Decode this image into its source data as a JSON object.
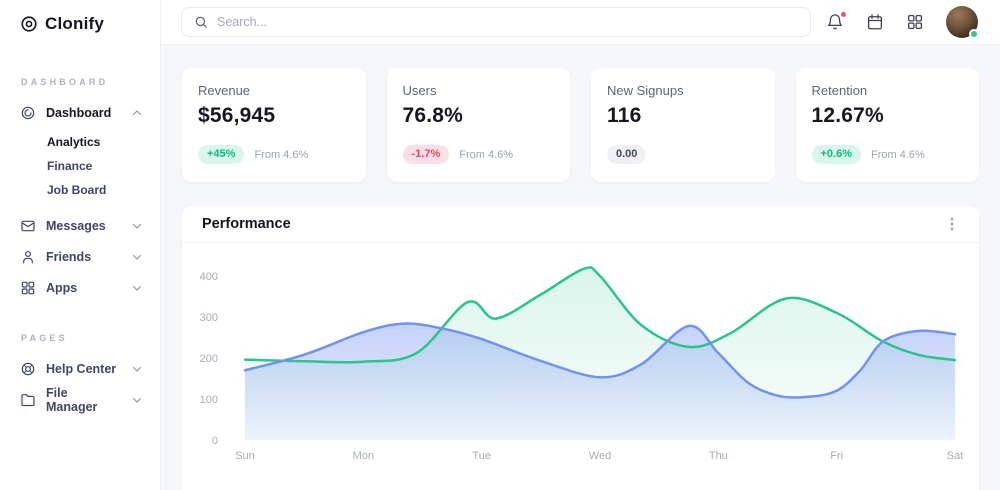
{
  "brand": {
    "name": "Clonify"
  },
  "topbar": {
    "search_placeholder": "Search...",
    "actions": [
      "bell-icon",
      "calendar-icon",
      "apps-grid-icon"
    ],
    "avatar_status": "online"
  },
  "sidebar": {
    "sections": [
      {
        "label": "DASHBOARD",
        "items": [
          {
            "label": "Dashboard",
            "icon": "dashboard-icon",
            "chevron": "up",
            "active": true,
            "children": [
              {
                "label": "Analytics",
                "active": true
              },
              {
                "label": "Finance",
                "active": false
              },
              {
                "label": "Job Board",
                "active": false
              }
            ]
          },
          {
            "label": "Messages",
            "icon": "messages-icon",
            "chevron": "down"
          },
          {
            "label": "Friends",
            "icon": "friends-icon",
            "chevron": "down"
          },
          {
            "label": "Apps",
            "icon": "apps-icon",
            "chevron": "down"
          }
        ]
      },
      {
        "label": "PAGES",
        "items": [
          {
            "label": "Help Center",
            "icon": "help-icon",
            "chevron": "down"
          },
          {
            "label": "File Manager",
            "icon": "folder-icon",
            "chevron": "down"
          }
        ]
      }
    ]
  },
  "stats": [
    {
      "title": "Revenue",
      "value": "$56,945",
      "badge": "+45%",
      "badge_type": "positive",
      "note": "From 4.6%"
    },
    {
      "title": "Users",
      "value": "76.8%",
      "badge": "-1.7%",
      "badge_type": "negative",
      "note": "From 4.6%"
    },
    {
      "title": "New Signups",
      "value": "116",
      "badge": "0.00",
      "badge_type": "neutral",
      "note": ""
    },
    {
      "title": "Retention",
      "value": "12.67%",
      "badge": "+0.6%",
      "badge_type": "positive",
      "note": "From 4.6%"
    }
  ],
  "performance": {
    "title": "Performance"
  },
  "chart_data": {
    "type": "area",
    "title": "Performance",
    "x_labels": [
      "Sun",
      "Mon",
      "Tue",
      "Wed",
      "Thu",
      "Fri",
      "Sat"
    ],
    "y_ticks": [
      0,
      100,
      200,
      300,
      400
    ],
    "ylim": [
      0,
      440
    ],
    "grid": false,
    "legend_position": "none",
    "series": [
      {
        "name": "green",
        "color": "#2bc48c",
        "points": [
          [
            0,
            196
          ],
          [
            0.5,
            192
          ],
          [
            1,
            191
          ],
          [
            1.45,
            212
          ],
          [
            1.88,
            336
          ],
          [
            2.12,
            296
          ],
          [
            2.5,
            355
          ],
          [
            2.86,
            417
          ],
          [
            3.0,
            400
          ],
          [
            3.35,
            280
          ],
          [
            3.75,
            227
          ],
          [
            4.1,
            260
          ],
          [
            4.57,
            345
          ],
          [
            5.0,
            310
          ],
          [
            5.38,
            242
          ],
          [
            5.7,
            207
          ],
          [
            6,
            195
          ]
        ]
      },
      {
        "name": "blue",
        "color": "#7292f0",
        "points": [
          [
            0,
            170
          ],
          [
            0.5,
            208
          ],
          [
            1,
            263
          ],
          [
            1.35,
            284
          ],
          [
            1.7,
            270
          ],
          [
            2.0,
            246
          ],
          [
            2.5,
            193
          ],
          [
            3.0,
            153
          ],
          [
            3.35,
            185
          ],
          [
            3.75,
            278
          ],
          [
            4.0,
            212
          ],
          [
            4.25,
            140
          ],
          [
            4.5,
            108
          ],
          [
            4.75,
            105
          ],
          [
            5.0,
            120
          ],
          [
            5.2,
            170
          ],
          [
            5.4,
            242
          ],
          [
            5.7,
            266
          ],
          [
            6,
            258
          ]
        ]
      }
    ]
  }
}
